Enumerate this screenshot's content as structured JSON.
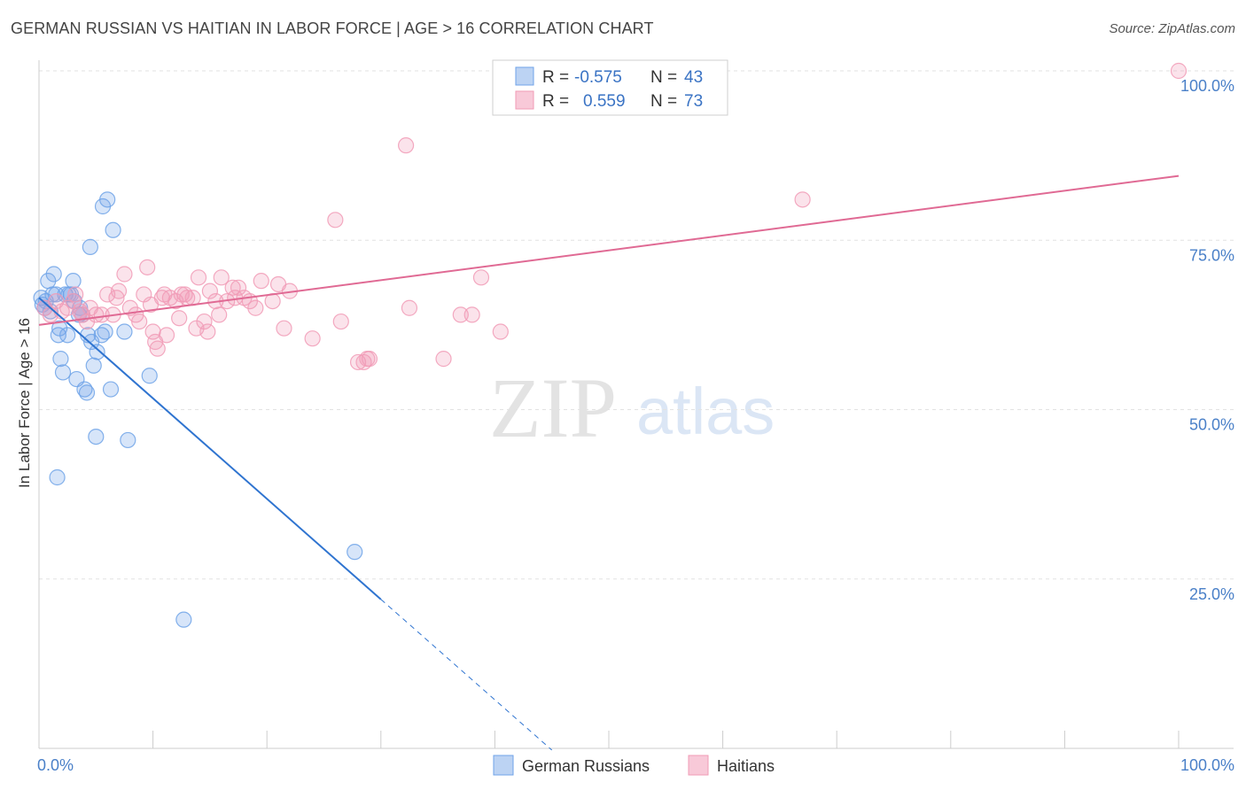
{
  "header": {
    "title": "GERMAN RUSSIAN VS HAITIAN IN LABOR FORCE | AGE > 16 CORRELATION CHART",
    "source": "Source: ZipAtlas.com"
  },
  "watermark": {
    "zip": "ZIP",
    "atlas": "atlas"
  },
  "legend": {
    "rows": [
      {
        "r_label": "R =",
        "r_value": "-0.575",
        "n_label": "N =",
        "n_value": "43",
        "color": "#6fa3e8"
      },
      {
        "r_label": "R =",
        "r_value": "0.559",
        "n_label": "N =",
        "n_value": "73",
        "color": "#f19bb6"
      }
    ]
  },
  "chart_data": {
    "type": "scatter",
    "ylabel": "In Labor Force | Age > 16",
    "xlim": [
      0,
      100
    ],
    "ylim": [
      0,
      100
    ],
    "x_tick_labels": [
      {
        "value": 0,
        "label": "0.0%"
      },
      {
        "value": 100,
        "label": "100.0%"
      }
    ],
    "y_tick_labels": [
      {
        "value": 100,
        "label": "100.0%"
      },
      {
        "value": 75,
        "label": "75.0%"
      },
      {
        "value": 50,
        "label": "50.0%"
      },
      {
        "value": 25,
        "label": "25.0%"
      }
    ],
    "gridlines": [
      100,
      75,
      50,
      25
    ],
    "legend_position": "bottom",
    "series": [
      {
        "name": "German Russians",
        "color": "#6fa3e8",
        "line_color": "#2f74d0",
        "trend": {
          "x0": 0.0,
          "y0": 66.5,
          "x1": 30.0,
          "y1": 22.0,
          "dash_to_x": 45.0
        },
        "points": [
          [
            0.2,
            66.5
          ],
          [
            0.3,
            65.5
          ],
          [
            0.5,
            65.0
          ],
          [
            0.6,
            66.0
          ],
          [
            0.8,
            69.0
          ],
          [
            1.0,
            64.5
          ],
          [
            1.2,
            67.0
          ],
          [
            1.3,
            70.0
          ],
          [
            1.5,
            67.0
          ],
          [
            1.7,
            61.0
          ],
          [
            1.8,
            62.0
          ],
          [
            1.9,
            57.5
          ],
          [
            2.1,
            55.5
          ],
          [
            2.3,
            67.0
          ],
          [
            2.5,
            61.0
          ],
          [
            2.6,
            67.0
          ],
          [
            2.8,
            67.0
          ],
          [
            3.0,
            69.0
          ],
          [
            3.1,
            66.0
          ],
          [
            3.3,
            54.5
          ],
          [
            3.5,
            64.0
          ],
          [
            3.6,
            65.0
          ],
          [
            3.8,
            64.0
          ],
          [
            4.0,
            53.0
          ],
          [
            4.2,
            52.5
          ],
          [
            4.3,
            61.0
          ],
          [
            4.5,
            74.0
          ],
          [
            4.6,
            60.0
          ],
          [
            4.8,
            56.5
          ],
          [
            5.0,
            46.0
          ],
          [
            5.1,
            58.5
          ],
          [
            5.5,
            61.0
          ],
          [
            5.6,
            80.0
          ],
          [
            5.8,
            61.5
          ],
          [
            6.0,
            81.0
          ],
          [
            6.3,
            53.0
          ],
          [
            6.5,
            76.5
          ],
          [
            7.5,
            61.5
          ],
          [
            7.8,
            45.5
          ],
          [
            9.7,
            55.0
          ],
          [
            12.7,
            19.0
          ],
          [
            1.6,
            40.0
          ],
          [
            27.7,
            29.0
          ]
        ]
      },
      {
        "name": "Haitians",
        "color": "#f19bb6",
        "line_color": "#e06a94",
        "trend": {
          "x0": 0.0,
          "y0": 62.5,
          "x1": 100.0,
          "y1": 84.5
        },
        "points": [
          [
            0.5,
            65.0
          ],
          [
            1.0,
            64.0
          ],
          [
            1.5,
            66.0
          ],
          [
            2.0,
            64.5
          ],
          [
            2.5,
            65.0
          ],
          [
            3.0,
            66.0
          ],
          [
            3.2,
            67.0
          ],
          [
            3.8,
            64.0
          ],
          [
            4.2,
            63.0
          ],
          [
            4.5,
            65.0
          ],
          [
            5.0,
            64.0
          ],
          [
            5.5,
            64.0
          ],
          [
            6.0,
            67.0
          ],
          [
            6.5,
            64.0
          ],
          [
            7.0,
            67.5
          ],
          [
            7.5,
            70.0
          ],
          [
            8.0,
            65.0
          ],
          [
            8.5,
            64.0
          ],
          [
            8.8,
            63.0
          ],
          [
            9.2,
            67.0
          ],
          [
            9.5,
            71.0
          ],
          [
            9.8,
            65.5
          ],
          [
            10.0,
            61.5
          ],
          [
            10.2,
            60.0
          ],
          [
            10.4,
            59.0
          ],
          [
            10.8,
            66.5
          ],
          [
            11.0,
            67.0
          ],
          [
            11.2,
            61.0
          ],
          [
            11.5,
            66.5
          ],
          [
            12.0,
            66.0
          ],
          [
            12.3,
            63.5
          ],
          [
            12.5,
            67.0
          ],
          [
            12.8,
            67.0
          ],
          [
            13.0,
            66.5
          ],
          [
            13.5,
            66.5
          ],
          [
            13.8,
            62.0
          ],
          [
            14.0,
            69.5
          ],
          [
            14.5,
            63.0
          ],
          [
            15.0,
            67.5
          ],
          [
            15.5,
            66.0
          ],
          [
            15.8,
            64.0
          ],
          [
            16.0,
            69.5
          ],
          [
            16.5,
            66.0
          ],
          [
            17.0,
            68.0
          ],
          [
            17.2,
            66.5
          ],
          [
            17.5,
            68.0
          ],
          [
            18.0,
            66.5
          ],
          [
            18.5,
            66.0
          ],
          [
            19.0,
            65.0
          ],
          [
            19.5,
            69.0
          ],
          [
            20.5,
            66.0
          ],
          [
            21.0,
            68.5
          ],
          [
            21.5,
            62.0
          ],
          [
            22.0,
            67.5
          ],
          [
            26.0,
            78.0
          ],
          [
            26.5,
            63.0
          ],
          [
            28.0,
            57.0
          ],
          [
            28.5,
            57.0
          ],
          [
            28.8,
            57.5
          ],
          [
            32.2,
            89.0
          ],
          [
            32.5,
            65.0
          ],
          [
            35.5,
            57.5
          ],
          [
            37.0,
            64.0
          ],
          [
            38.0,
            64.0
          ],
          [
            38.8,
            69.5
          ],
          [
            40.5,
            61.5
          ],
          [
            29.0,
            57.5
          ],
          [
            67.0,
            81.0
          ],
          [
            100.0,
            100.0
          ],
          [
            3.6,
            64.5
          ],
          [
            6.8,
            66.5
          ],
          [
            14.8,
            61.5
          ],
          [
            24.0,
            60.5
          ]
        ]
      }
    ]
  }
}
